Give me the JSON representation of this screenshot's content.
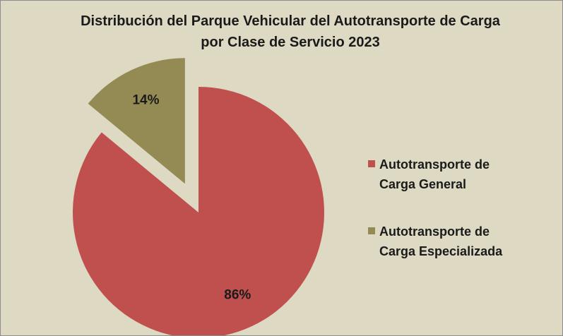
{
  "chart_data": {
    "type": "pie",
    "title": "Distribución del Parque Vehicular del Autotransporte de Carga por Clase de Servicio 2023",
    "categories": [
      "Autotransporte de Carga General",
      "Autotransporte de Carga Especializada"
    ],
    "values": [
      86,
      14
    ],
    "value_labels": [
      "86%",
      "14%"
    ],
    "colors": [
      "#c0504d",
      "#948a54"
    ],
    "legend": "right"
  }
}
